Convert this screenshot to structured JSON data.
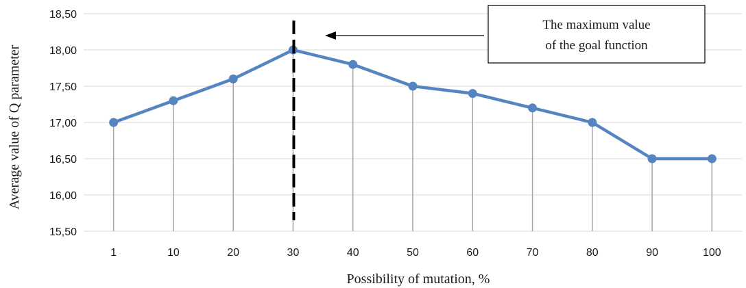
{
  "chart_data": {
    "type": "line",
    "title": "",
    "xlabel": "Possibility of mutation, %",
    "ylabel": "Average value of Q parameter",
    "categories": [
      "1",
      "10",
      "20",
      "30",
      "40",
      "50",
      "60",
      "70",
      "80",
      "90",
      "100"
    ],
    "series": [
      {
        "values": [
          17.0,
          17.3,
          17.6,
          18.0,
          17.8,
          17.5,
          17.4,
          17.2,
          17.0,
          16.5,
          16.5
        ]
      }
    ],
    "ylim": [
      15.5,
      18.5
    ],
    "yticks": [
      "15,50",
      "16,00",
      "16,50",
      "17,00",
      "17,50",
      "18,00",
      "18,50"
    ],
    "grid": "horizontal",
    "drop_lines": true,
    "marker_line_category": "30",
    "annotation": {
      "lines": [
        "The maximum value",
        "of the goal function"
      ]
    },
    "colors": {
      "series": "#5585C0",
      "grid": "#d9d9d9",
      "drop_line": "#a6a6a6",
      "marker_line": "#000000"
    }
  }
}
